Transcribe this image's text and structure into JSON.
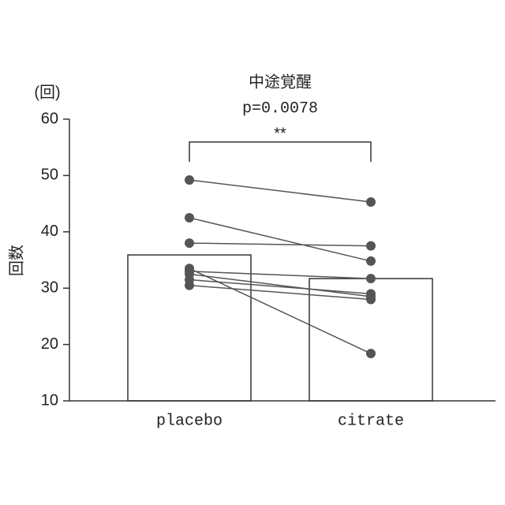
{
  "chart_data": {
    "type": "bar",
    "title": "中途覚醒",
    "subtitle": "p=0.0078",
    "annotation": "**",
    "y_label": "回数",
    "y_unit": "(回)",
    "categories": [
      "placebo",
      "citrate"
    ],
    "values": [
      35.9,
      31.7
    ],
    "color": "#ffffff",
    "paired": [
      [
        49.2,
        45.3
      ],
      [
        42.5,
        34.8
      ],
      [
        38,
        37.5
      ],
      [
        33.5,
        18.4
      ],
      [
        33,
        31.7
      ],
      [
        32.5,
        28.5
      ],
      [
        31.5,
        29
      ],
      [
        30.5,
        28
      ]
    ],
    "point_color": "#555555",
    "ylim": [
      10,
      60
    ],
    "yticks": [
      10,
      20,
      30,
      40,
      50,
      60
    ]
  }
}
